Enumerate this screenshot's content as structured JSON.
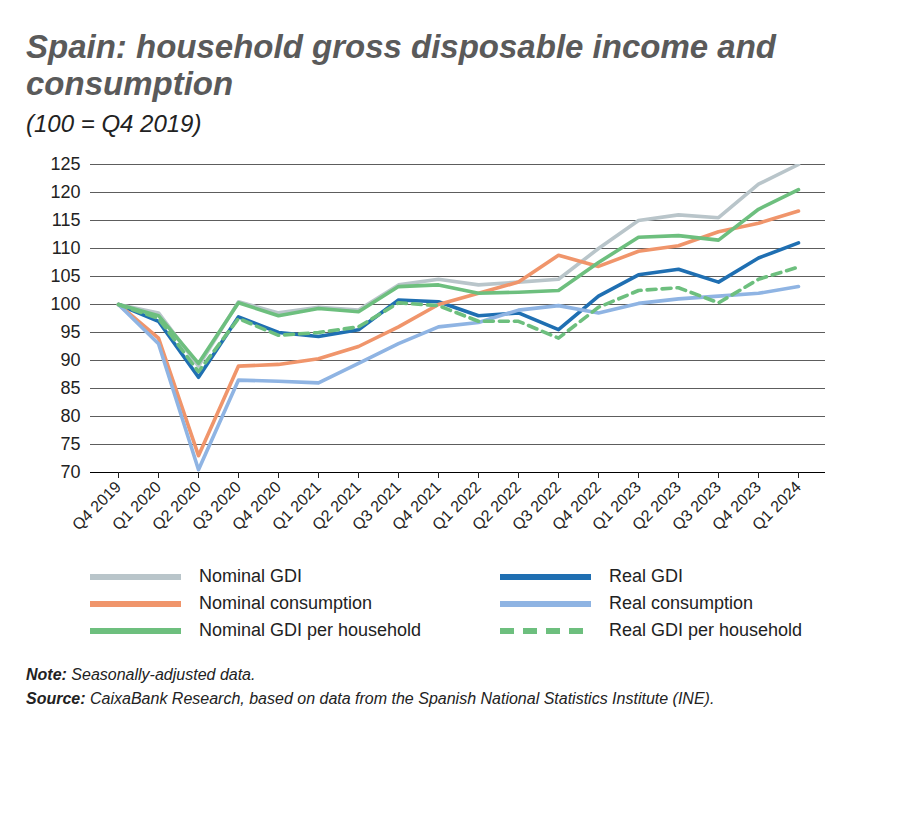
{
  "chart_data": {
    "type": "line",
    "title": "Spain: household gross disposable income and consumption",
    "subtitle": "(100 = Q4 2019)",
    "categories": [
      "Q4 2019",
      "Q1 2020",
      "Q2 2020",
      "Q3 2020",
      "Q4 2020",
      "Q1 2021",
      "Q2 2021",
      "Q3 2021",
      "Q4 2021",
      "Q1 2022",
      "Q2 2022",
      "Q3 2022",
      "Q4 2022",
      "Q1 2023",
      "Q2 2023",
      "Q3 2023",
      "Q4 2023",
      "Q1 2024"
    ],
    "series": [
      {
        "name": "Nominal GDI",
        "color": "#b9c5ca",
        "line_style": "solid",
        "values": [
          100,
          98.5,
          89,
          100.5,
          98.5,
          99.5,
          99,
          103.5,
          104.5,
          103.5,
          104,
          104.5,
          110,
          115,
          116,
          115.5,
          121.5,
          125
        ]
      },
      {
        "name": "Real GDI",
        "color": "#1f6fb2",
        "line_style": "solid",
        "values": [
          100,
          97,
          87,
          97.8,
          95,
          94.3,
          95.5,
          100.8,
          100.5,
          98,
          98.5,
          95.5,
          101.5,
          105.3,
          106.3,
          104,
          108.3,
          111
        ]
      },
      {
        "name": "Nominal consumption",
        "color": "#f0956b",
        "line_style": "solid",
        "values": [
          100,
          94,
          73,
          89,
          89.3,
          90.3,
          92.5,
          96,
          100,
          102,
          104,
          108.8,
          106.8,
          109.5,
          110.5,
          113,
          114.5,
          116.7
        ]
      },
      {
        "name": "Real consumption",
        "color": "#8fb4e3",
        "line_style": "solid",
        "values": [
          100,
          93,
          70.5,
          86.5,
          86.3,
          86,
          89.5,
          93,
          96,
          96.8,
          99,
          99.8,
          98.5,
          100.2,
          101,
          101.5,
          102,
          103.2
        ]
      },
      {
        "name": "Nominal GDI per household",
        "color": "#6dbf7e",
        "line_style": "solid",
        "values": [
          100,
          98,
          89.5,
          100.3,
          98,
          99.3,
          98.7,
          103.2,
          103.5,
          102,
          102.2,
          102.5,
          107.5,
          112,
          112.3,
          111.5,
          117,
          120.5
        ]
      },
      {
        "name": "Real GDI per household",
        "color": "#6dbf7e",
        "line_style": "dashed",
        "values": [
          100,
          97.5,
          88,
          97.5,
          94.5,
          95,
          96,
          100.3,
          99.8,
          97,
          97,
          94,
          99.5,
          102.5,
          103,
          100.3,
          104.5,
          106.7
        ]
      }
    ],
    "ylim": [
      70,
      125
    ],
    "yticks": [
      70,
      75,
      80,
      85,
      90,
      95,
      100,
      105,
      110,
      115,
      120,
      125
    ],
    "grid": true,
    "legend": "bottom",
    "notes": [
      {
        "label": "Note:",
        "text": "Seasonally-adjusted data."
      },
      {
        "label": "Source:",
        "text": "CaixaBank Research, based on data from the Spanish National Statistics Institute (INE)."
      }
    ]
  }
}
